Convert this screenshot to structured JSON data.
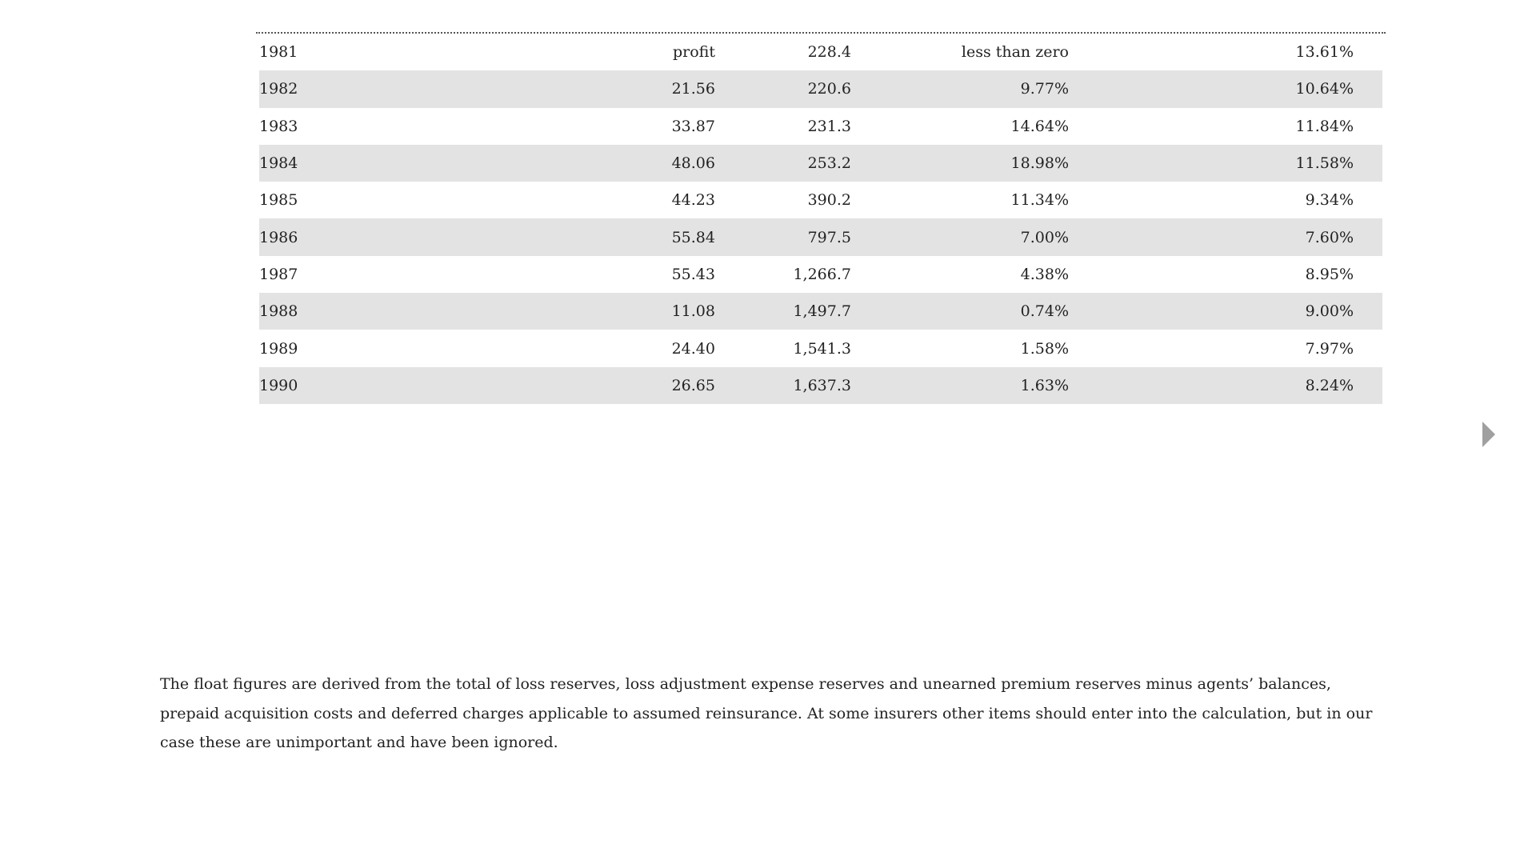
{
  "table": {
    "rows": [
      {
        "year": "1981",
        "col2": "profit",
        "col3": "228.4",
        "col4": "less than zero",
        "col5": "13.61%"
      },
      {
        "year": "1982",
        "col2": "21.56",
        "col3": "220.6",
        "col4": "9.77%",
        "col5": "10.64%"
      },
      {
        "year": "1983",
        "col2": "33.87",
        "col3": "231.3",
        "col4": "14.64%",
        "col5": "11.84%"
      },
      {
        "year": "1984",
        "col2": "48.06",
        "col3": "253.2",
        "col4": "18.98%",
        "col5": "11.58%"
      },
      {
        "year": "1985",
        "col2": "44.23",
        "col3": "390.2",
        "col4": "11.34%",
        "col5": "9.34%"
      },
      {
        "year": "1986",
        "col2": "55.84",
        "col3": "797.5",
        "col4": "7.00%",
        "col5": "7.60%"
      },
      {
        "year": "1987",
        "col2": "55.43",
        "col3": "1,266.7",
        "col4": "4.38%",
        "col5": "8.95%"
      },
      {
        "year": "1988",
        "col2": "11.08",
        "col3": "1,497.7",
        "col4": "0.74%",
        "col5": "9.00%"
      },
      {
        "year": "1989",
        "col2": "24.40",
        "col3": "1,541.3",
        "col4": "1.58%",
        "col5": "7.97%"
      },
      {
        "year": "1990",
        "col2": "26.65",
        "col3": "1,637.3",
        "col4": "1.63%",
        "col5": "8.24%"
      }
    ]
  },
  "footnote": {
    "text": "The float figures are derived from the total of loss reserves, loss adjustment expense reserves and unearned premium reserves minus agents’ balances, prepaid acquisition costs and deferred charges applicable to assumed reinsurance. At some insurers other items should enter into the calculation, but in our case these are unimportant and have been ignored."
  },
  "nav": {
    "next_icon": "triangle-right-icon",
    "icon_color": "#a0a0a0"
  },
  "colors": {
    "stripe": "#e3e3e3",
    "text": "#222222"
  }
}
